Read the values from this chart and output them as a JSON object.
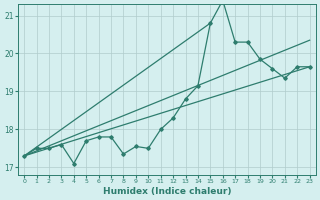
{
  "xlabel": "Humidex (Indice chaleur)",
  "bg_color": "#d5efef",
  "grid_color": "#b0cccc",
  "line_color": "#2e7d6e",
  "xlim": [
    -0.5,
    23.5
  ],
  "ylim": [
    16.8,
    21.3
  ],
  "yticks": [
    17,
    18,
    19,
    20,
    21
  ],
  "xticks": [
    0,
    1,
    2,
    3,
    4,
    5,
    6,
    7,
    8,
    9,
    10,
    11,
    12,
    13,
    14,
    15,
    16,
    17,
    18,
    19,
    20,
    21,
    22,
    23
  ],
  "series1_x": [
    0,
    1,
    2,
    3,
    4,
    5,
    6,
    7,
    8,
    9,
    10,
    11,
    12,
    13,
    14,
    15,
    16,
    17,
    18,
    19,
    20,
    21,
    22,
    23
  ],
  "series1_y": [
    17.3,
    17.5,
    17.5,
    17.6,
    17.1,
    17.7,
    17.8,
    17.8,
    17.35,
    17.55,
    17.5,
    18.0,
    18.3,
    18.8,
    19.15,
    20.8,
    21.4,
    20.3,
    20.3,
    19.85,
    19.6,
    19.35,
    19.65,
    19.65
  ],
  "line1_x": [
    0,
    23
  ],
  "line1_y": [
    17.3,
    19.65
  ],
  "line2_x": [
    0,
    15
  ],
  "line2_y": [
    17.3,
    20.8
  ],
  "line3_x": [
    0,
    23
  ],
  "line3_y": [
    17.3,
    20.35
  ]
}
